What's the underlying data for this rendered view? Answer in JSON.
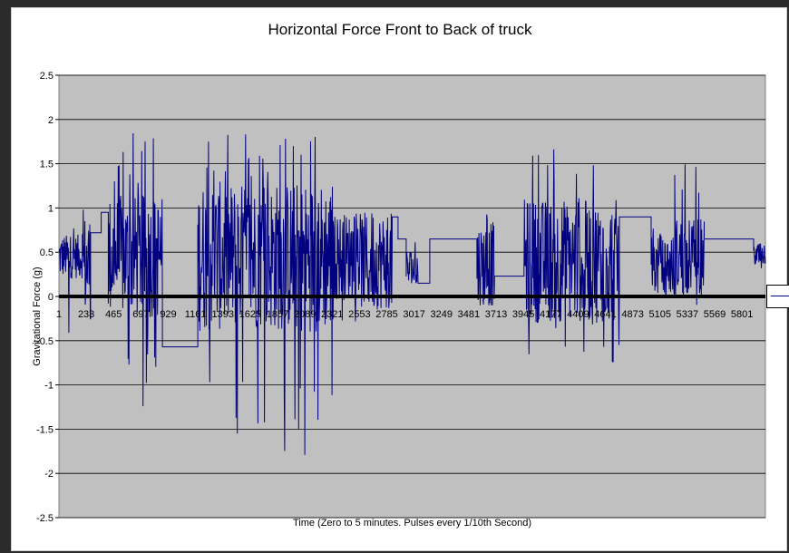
{
  "chart_data": {
    "type": "line",
    "title": "Horizontal Force Front to Back of truck",
    "xlabel": "Time (Zero to 5 minutes. Pulses every 1/10th Second)",
    "ylabel": "Gravitational Force (g)",
    "ylim": [
      -2.5,
      2.5
    ],
    "yticks": [
      2.5,
      2,
      1.5,
      1,
      0.5,
      0,
      -0.5,
      -1,
      -1.5,
      -2,
      -2.5
    ],
    "xrange": [
      1,
      6000
    ],
    "xtick_labels": [
      "1",
      "233",
      "465",
      "697",
      "929",
      "1161",
      "1393",
      "1625",
      "1857",
      "2089",
      "2321",
      "2553",
      "2785",
      "3017",
      "3249",
      "3481",
      "3713",
      "3945",
      "4177",
      "4409",
      "4641",
      "4873",
      "5105",
      "5337",
      "5569",
      "5801"
    ],
    "grid": "horizontal",
    "legend_position": "right",
    "line_color": "#000080",
    "plot_background": "#c0c0c0",
    "series": [
      {
        "segments": [
          {
            "x0": 1,
            "x1": 200,
            "mode": "noise",
            "center": 0.45,
            "amp": 0.25,
            "spike_max": 0.85,
            "spike_min": -0.55
          },
          {
            "x0": 200,
            "x1": 270,
            "mode": "noise",
            "center": 0.35,
            "amp": 0.6,
            "spike_max": 1.3,
            "spike_min": -0.65
          },
          {
            "x0": 270,
            "x1": 360,
            "mode": "flat",
            "value": 0.72
          },
          {
            "x0": 360,
            "x1": 420,
            "mode": "flat",
            "value": 0.95
          },
          {
            "x0": 420,
            "x1": 880,
            "mode": "noise",
            "center": 0.45,
            "amp": 0.7,
            "spike_max": 1.85,
            "spike_min": -1.3
          },
          {
            "x0": 880,
            "x1": 1180,
            "mode": "flat",
            "value": -0.57
          },
          {
            "x0": 1180,
            "x1": 2330,
            "mode": "noise",
            "center": 0.45,
            "amp": 0.85,
            "spike_max": 1.85,
            "spike_min": -1.87
          },
          {
            "x0": 2330,
            "x1": 2560,
            "mode": "noise",
            "center": 0.45,
            "amp": 0.5,
            "spike_max": 0.95,
            "spike_min": -0.3
          },
          {
            "x0": 2560,
            "x1": 2830,
            "mode": "noise",
            "center": 0.4,
            "amp": 0.55,
            "spike_max": 1.1,
            "spike_min": -0.15
          },
          {
            "x0": 2830,
            "x1": 2880,
            "mode": "flat",
            "value": 0.9
          },
          {
            "x0": 2880,
            "x1": 2950,
            "mode": "flat",
            "value": 0.65
          },
          {
            "x0": 2950,
            "x1": 3050,
            "mode": "noise",
            "center": 0.3,
            "amp": 0.25,
            "spike_max": 0.65,
            "spike_min": 0.15
          },
          {
            "x0": 3050,
            "x1": 3150,
            "mode": "flat",
            "value": 0.15
          },
          {
            "x0": 3150,
            "x1": 3550,
            "mode": "flat",
            "value": 0.65
          },
          {
            "x0": 3550,
            "x1": 3700,
            "mode": "noise",
            "center": 0.35,
            "amp": 0.5,
            "spike_max": 1.0,
            "spike_min": -0.1
          },
          {
            "x0": 3700,
            "x1": 3950,
            "mode": "flat",
            "value": 0.23
          },
          {
            "x0": 3950,
            "x1": 4760,
            "mode": "noise",
            "center": 0.4,
            "amp": 0.7,
            "spike_max": 1.67,
            "spike_min": -0.82
          },
          {
            "x0": 4760,
            "x1": 5030,
            "mode": "flat",
            "value": 0.9
          },
          {
            "x0": 5030,
            "x1": 5230,
            "mode": "noise",
            "center": 0.35,
            "amp": 0.35,
            "spike_max": 0.9,
            "spike_min": -0.05
          },
          {
            "x0": 5230,
            "x1": 5480,
            "mode": "noise",
            "center": 0.45,
            "amp": 0.45,
            "spike_max": 1.5,
            "spike_min": -0.15
          },
          {
            "x0": 5480,
            "x1": 5900,
            "mode": "flat",
            "value": 0.65
          },
          {
            "x0": 5900,
            "x1": 6000,
            "mode": "noise",
            "center": 0.45,
            "amp": 0.15,
            "spike_max": 0.6,
            "spike_min": 0.3
          }
        ]
      }
    ]
  }
}
